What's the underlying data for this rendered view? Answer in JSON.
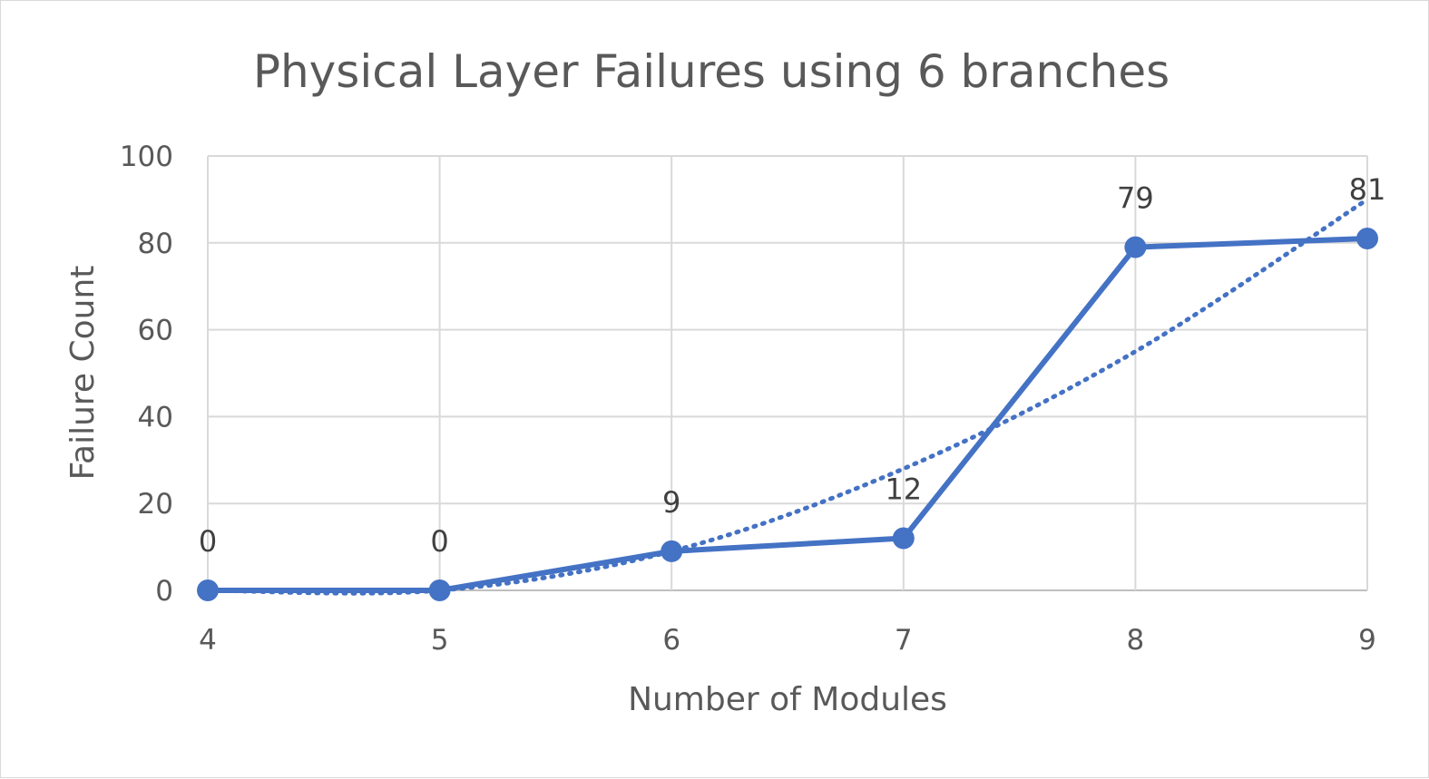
{
  "chart_data": {
    "type": "line",
    "title": "Physical Layer Failures using 6 branches",
    "xlabel": "Number of Modules",
    "ylabel": "Failure Count",
    "categories": [
      "4",
      "5",
      "6",
      "7",
      "8",
      "9"
    ],
    "series": [
      {
        "values": [
          0,
          0,
          9,
          12,
          79,
          81
        ],
        "color": "#4472c4",
        "marker": "circle",
        "data_labels": true
      }
    ],
    "trendline": {
      "type": "polynomial",
      "style": "dotted",
      "color": "#4472c4",
      "values": [
        0,
        0,
        9,
        28,
        55,
        90
      ]
    },
    "ylim": [
      0,
      100
    ],
    "yticks": [
      0,
      20,
      40,
      60,
      80,
      100
    ],
    "grid": true,
    "legend": "none"
  }
}
